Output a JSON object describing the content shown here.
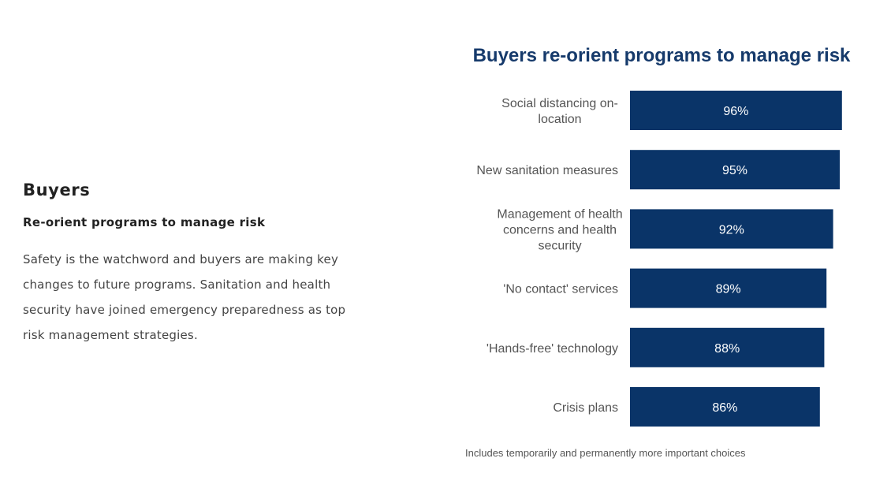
{
  "section": {
    "heading": "Buyers",
    "subheading": "Re-orient programs to manage risk",
    "body": "Safety is the watchword and buyers are making key changes to future programs. Sanitation and health security have joined emergency preparedness as top risk management strategies."
  },
  "chart_data": {
    "type": "bar",
    "orientation": "horizontal",
    "title": "Buyers re-orient programs to manage risk",
    "categories": [
      "Social distancing on-location",
      "New sanitation measures",
      "Management of health concerns and health security",
      "'No contact' services",
      "'Hands-free' technology",
      "Crisis plans"
    ],
    "category_lines": [
      [
        "Social distancing on-",
        "location"
      ],
      [
        "New sanitation measures"
      ],
      [
        "Management of health",
        "concerns and health",
        "security"
      ],
      [
        "'No contact' services"
      ],
      [
        "'Hands-free' technology"
      ],
      [
        "Crisis plans"
      ]
    ],
    "values": [
      96,
      95,
      92,
      89,
      88,
      86
    ],
    "value_labels": [
      "96%",
      "95%",
      "92%",
      "89%",
      "88%",
      "86%"
    ],
    "footnote": "Includes temporarily and permanently more important choices",
    "grid": false,
    "legend": "none",
    "colors": {
      "bar": "#0a3468",
      "title": "#163a6b",
      "label": "#555555",
      "value_label": "#ffffff",
      "footnote": "#555555"
    }
  }
}
